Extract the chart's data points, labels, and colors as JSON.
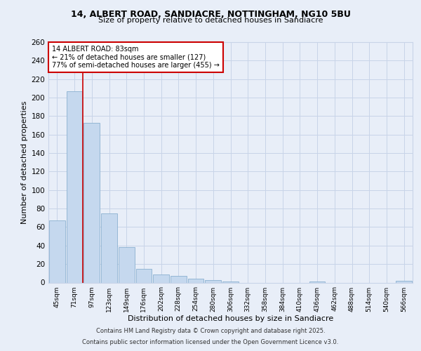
{
  "title1": "14, ALBERT ROAD, SANDIACRE, NOTTINGHAM, NG10 5BU",
  "title2": "Size of property relative to detached houses in Sandiacre",
  "xlabel": "Distribution of detached houses by size in Sandiacre",
  "ylabel": "Number of detached properties",
  "categories": [
    "45sqm",
    "71sqm",
    "97sqm",
    "123sqm",
    "149sqm",
    "176sqm",
    "202sqm",
    "228sqm",
    "254sqm",
    "280sqm",
    "306sqm",
    "332sqm",
    "358sqm",
    "384sqm",
    "410sqm",
    "436sqm",
    "462sqm",
    "488sqm",
    "514sqm",
    "540sqm",
    "566sqm"
  ],
  "values": [
    67,
    207,
    173,
    75,
    38,
    15,
    9,
    7,
    4,
    3,
    1,
    0,
    0,
    0,
    0,
    1,
    0,
    0,
    0,
    0,
    2
  ],
  "bar_color": "#c5d8ee",
  "bar_edge_color": "#8ab0d0",
  "annotation_line1": "14 ALBERT ROAD: 83sqm",
  "annotation_line2": "← 21% of detached houses are smaller (127)",
  "annotation_line3": "77% of semi-detached houses are larger (455) →",
  "annotation_box_color": "#ffffff",
  "annotation_box_edge_color": "#cc0000",
  "red_line_color": "#cc0000",
  "ylim": [
    0,
    260
  ],
  "yticks": [
    0,
    20,
    40,
    60,
    80,
    100,
    120,
    140,
    160,
    180,
    200,
    220,
    240,
    260
  ],
  "footer1": "Contains HM Land Registry data © Crown copyright and database right 2025.",
  "footer2": "Contains public sector information licensed under the Open Government Licence v3.0.",
  "bg_color": "#e8eef8",
  "grid_color": "#c8d4e8"
}
